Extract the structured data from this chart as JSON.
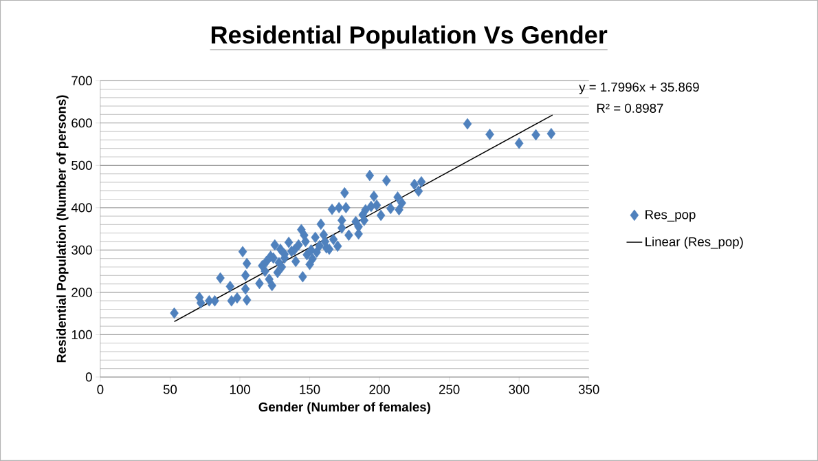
{
  "chart_data": {
    "type": "scatter",
    "title": "Residential Population Vs Gender",
    "xlabel": "Gender (Number of females)",
    "ylabel": "Residential Population (Number of persons)",
    "xlim": [
      0,
      350
    ],
    "xticks": [
      0,
      50,
      100,
      150,
      200,
      250,
      300,
      350
    ],
    "ylim": [
      0,
      700
    ],
    "yticks": [
      0,
      100,
      200,
      300,
      400,
      500,
      600,
      700
    ],
    "grid": "y",
    "legend": "right",
    "annotations": [
      "y = 1.7996x + 35.869",
      "R² = 0.8987"
    ],
    "series": [
      {
        "name": "Res_pop",
        "type": "scatter",
        "marker": "diamond",
        "color": "#4f81bd",
        "x": [
          53,
          71,
          72,
          78,
          82,
          86,
          93,
          94,
          98,
          102,
          104,
          104,
          105,
          105,
          114,
          116,
          119,
          121,
          123,
          125,
          124,
          127,
          129,
          130,
          132,
          135,
          137,
          140,
          142,
          144,
          145,
          146,
          148,
          150,
          152,
          154,
          157,
          158,
          160,
          162,
          164,
          166,
          170,
          171,
          173,
          175,
          176,
          178,
          183,
          185,
          188,
          189,
          193,
          194,
          196,
          198,
          201,
          205,
          213,
          214,
          216,
          225,
          228,
          230,
          263,
          279,
          300,
          312,
          323,
          167,
          173,
          185,
          190,
          208,
          155,
          132,
          128,
          118,
          122,
          139,
          147,
          151,
          161
        ],
        "values": [
          151,
          188,
          175,
          180,
          180,
          234,
          214,
          180,
          187,
          296,
          240,
          208,
          268,
          182,
          221,
          263,
          273,
          231,
          216,
          312,
          281,
          247,
          302,
          260,
          281,
          318,
          297,
          273,
          312,
          348,
          237,
          335,
          289,
          266,
          279,
          330,
          310,
          361,
          336,
          305,
          302,
          396,
          309,
          400,
          370,
          435,
          400,
          335,
          367,
          338,
          383,
          370,
          476,
          403,
          427,
          406,
          382,
          464,
          425,
          395,
          411,
          455,
          439,
          461,
          598,
          573,
          552,
          572,
          575,
          325,
          352,
          355,
          395,
          398,
          295,
          290,
          270,
          250,
          285,
          300,
          320,
          300,
          320
        ]
      },
      {
        "name": "Linear (Res_pop)",
        "type": "line",
        "color": "#000000",
        "line_style": "solid",
        "x": [
          53,
          324
        ],
        "values": [
          131,
          619
        ]
      }
    ]
  }
}
